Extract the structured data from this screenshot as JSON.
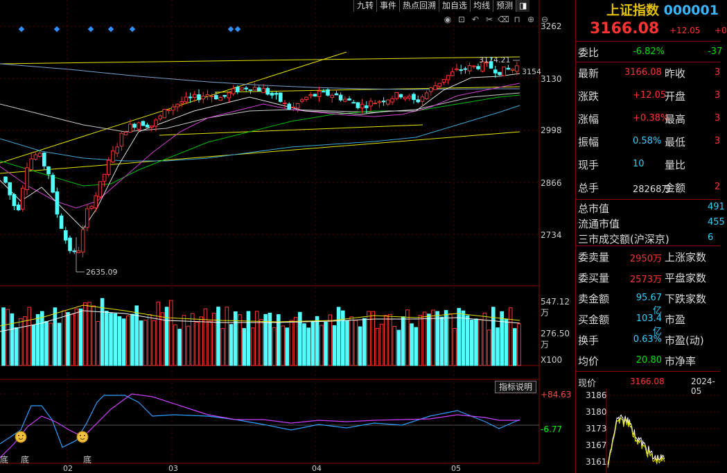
{
  "toolbar": {
    "items": [
      "九转",
      "事件",
      "热点回溯",
      "加自选",
      "均线",
      "预测"
    ],
    "corner_icon": "pin-icon"
  },
  "chart_tool_icons": [
    "eye-icon",
    "lock-icon",
    "undo-icon",
    "scissors-icon",
    "clear-icon",
    "lock-icon",
    "zoom-in-icon",
    "zoom-out-icon"
  ],
  "main_chart": {
    "y_ticks": [
      "3262",
      "3130",
      "2998",
      "2866",
      "2734"
    ],
    "high_label": "3174.21",
    "low_label": "2635.09",
    "last_label": "3154"
  },
  "volume_chart": {
    "ticks": [
      "547.12万",
      "276.50万"
    ],
    "unit": "X100"
  },
  "indicator_chart": {
    "button": "指标说明",
    "ticks": [
      "+84.63",
      "-6.77"
    ],
    "bottom_marks": [
      "底",
      "底",
      "底"
    ]
  },
  "x_axis": [
    "02",
    "03",
    "04",
    "05"
  ],
  "quote": {
    "name": "上证指数",
    "code": "000001",
    "price": "3166.08",
    "change": "+12.05",
    "pct_partial": "+0",
    "weibi_label": "委比",
    "weibi_value": "-6.82%",
    "weibi_extra": "-37",
    "rows": [
      {
        "l": "最新",
        "v": "3166.08",
        "vc": "red",
        "l2": "昨收",
        "v2": "3"
      },
      {
        "l": "涨跌",
        "v": "+12.05",
        "vc": "red",
        "l2": "开盘",
        "v2": "3"
      },
      {
        "l": "涨幅",
        "v": "+0.38%",
        "vc": "red",
        "l2": "最高",
        "v2": "3"
      },
      {
        "l": "振幅",
        "v": "0.58%",
        "vc": "cyan",
        "l2": "最低",
        "v2": "3"
      },
      {
        "l": "现手",
        "v": "10",
        "vc": "cyan",
        "l2": "量比",
        "v2": ""
      },
      {
        "l": "总手",
        "v": "28268万",
        "vc": "white",
        "l2": "金额",
        "v2": "2"
      }
    ],
    "mkt_rows": [
      {
        "l": "总市值",
        "v": "491"
      },
      {
        "l": "流通市值",
        "v": "455"
      },
      {
        "l": "三市成交额(沪深京)",
        "v": "6"
      }
    ],
    "bottom_rows": [
      {
        "l": "委卖量",
        "v": "2950万",
        "vc": "red",
        "l2": "上涨家数"
      },
      {
        "l": "委买量",
        "v": "2573万",
        "vc": "red",
        "l2": "平盘家数"
      },
      {
        "l": "卖金额",
        "v": "95.67亿",
        "vc": "cyan",
        "l2": "下跌家数"
      },
      {
        "l": "买金额",
        "v": "103.4亿",
        "vc": "cyan",
        "l2": "市盈"
      },
      {
        "l": "换手",
        "v": "0.63%",
        "vc": "cyan",
        "l2": "市盈(动)"
      },
      {
        "l": "均价",
        "v": "20.80",
        "vc": "green",
        "l2": "市净率"
      }
    ],
    "mini": {
      "label": "现价",
      "price": "3166.08",
      "date": "2024-05",
      "ticks": [
        "3186",
        "3180",
        "3173",
        "3167",
        "3161"
      ]
    }
  },
  "colors": {
    "up": "#ff3333",
    "down": "#54ffff",
    "accent": "#e0c000"
  }
}
